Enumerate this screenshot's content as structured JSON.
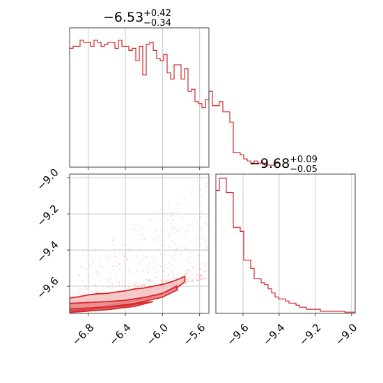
{
  "chart_data": {
    "type": "corner",
    "color": "#d62728",
    "grid": true,
    "panels": [
      {
        "panel": "marginal-param-1",
        "type": "histogram",
        "title_value": "−6.53",
        "title_plus": "+0.42",
        "title_minus": "−0.34",
        "x_range": [
          -7.0,
          -5.5
        ],
        "x_ticks": [
          -6.8,
          -6.4,
          -6.0,
          -5.6
        ],
        "y_range": [
          0,
          34
        ],
        "edges_start": -7.0,
        "bin_width": 0.0375,
        "counts": [
          29,
          29.5,
          29.5,
          31,
          30.5,
          30.5,
          29.5,
          31,
          30.5,
          29.5,
          30,
          30.5,
          30.5,
          29,
          31,
          29.5,
          29.5,
          28.5,
          29,
          26,
          29.5,
          22.5,
          30,
          30.5,
          28.5,
          26.5,
          26,
          27.5,
          23,
          21.5,
          25,
          25,
          21.5,
          24,
          18.5,
          19,
          16,
          15.5,
          14.5,
          16.5,
          18.5,
          15,
          15,
          16,
          13.5,
          13.5,
          11,
          3.5,
          3.5,
          3,
          2,
          1.5,
          1,
          1.5,
          1,
          1,
          0.5,
          0.5,
          0.5,
          1
        ]
      },
      {
        "panel": "joint",
        "type": "scatter-contour",
        "x_range": [
          -7.0,
          -5.5
        ],
        "y_range": [
          -9.75,
          -8.98
        ],
        "x_ticks": [
          -6.8,
          -6.4,
          -6.0,
          -5.6
        ],
        "y_ticks": [
          -9.0,
          -9.2,
          -9.4,
          -9.6
        ],
        "x_tick_labels": [
          "−6.8",
          "−6.4",
          "−6.0",
          "−5.6"
        ],
        "y_tick_labels": [
          "−9.0",
          "−9.2",
          "−9.4",
          "−9.6"
        ],
        "contour_outer": [
          [
            -7.0,
            -9.665
          ],
          [
            -6.9,
            -9.658
          ],
          [
            -6.8,
            -9.648
          ],
          [
            -6.7,
            -9.642
          ],
          [
            -6.6,
            -9.64
          ],
          [
            -6.5,
            -9.632
          ],
          [
            -6.4,
            -9.626
          ],
          [
            -6.3,
            -9.615
          ],
          [
            -6.2,
            -9.61
          ],
          [
            -6.1,
            -9.6
          ],
          [
            -6.0,
            -9.59
          ],
          [
            -5.9,
            -9.575
          ],
          [
            -5.8,
            -9.555
          ],
          [
            -5.76,
            -9.545
          ],
          [
            -5.76,
            -9.575
          ],
          [
            -5.82,
            -9.6
          ],
          [
            -5.95,
            -9.63
          ],
          [
            -6.1,
            -9.66
          ],
          [
            -6.3,
            -9.68
          ],
          [
            -6.5,
            -9.7
          ],
          [
            -6.7,
            -9.715
          ],
          [
            -6.9,
            -9.73
          ],
          [
            -7.0,
            -9.74
          ]
        ],
        "contour_mid": [
          [
            -7.0,
            -9.695
          ],
          [
            -6.8,
            -9.69
          ],
          [
            -6.6,
            -9.685
          ],
          [
            -6.4,
            -9.678
          ],
          [
            -6.2,
            -9.662
          ],
          [
            -6.0,
            -9.64
          ],
          [
            -5.85,
            -9.6
          ],
          [
            -5.84,
            -9.62
          ],
          [
            -6.0,
            -9.66
          ],
          [
            -6.3,
            -9.695
          ],
          [
            -6.6,
            -9.715
          ],
          [
            -6.9,
            -9.735
          ],
          [
            -7.0,
            -9.742
          ]
        ],
        "contour_inner": [
          [
            -7.0,
            -9.725
          ],
          [
            -6.7,
            -9.718
          ],
          [
            -6.4,
            -9.708
          ],
          [
            -6.2,
            -9.69
          ],
          [
            -6.1,
            -9.685
          ],
          [
            -6.3,
            -9.712
          ],
          [
            -6.6,
            -9.73
          ],
          [
            -7.0,
            -9.745
          ]
        ]
      },
      {
        "panel": "marginal-param-2",
        "type": "histogram",
        "title_value": "−9.68",
        "title_plus": "+0.09",
        "title_minus": "−0.05",
        "x_range": [
          -9.75,
          -8.98
        ],
        "x_ticks": [
          -9.6,
          -9.4,
          -9.2,
          -9.0
        ],
        "x_tick_labels": [
          "−9.6",
          "−9.4",
          "−9.2",
          "−9.0"
        ],
        "y_range": [
          0,
          34
        ],
        "edges_start": -9.75,
        "bin_width": 0.01925,
        "counts": [
          30,
          33,
          33,
          29.5,
          29.5,
          21,
          21,
          20,
          13,
          13,
          11,
          8.5,
          8.5,
          7.5,
          7,
          6,
          5,
          4,
          3.5,
          3.5,
          3,
          2.5,
          2.5,
          2,
          1.5,
          1.5,
          1,
          1,
          1,
          1,
          0.5,
          0.5,
          0.5,
          0.5,
          0.5,
          0.5,
          0.5,
          0.3,
          0.3,
          0.3
        ]
      }
    ]
  }
}
